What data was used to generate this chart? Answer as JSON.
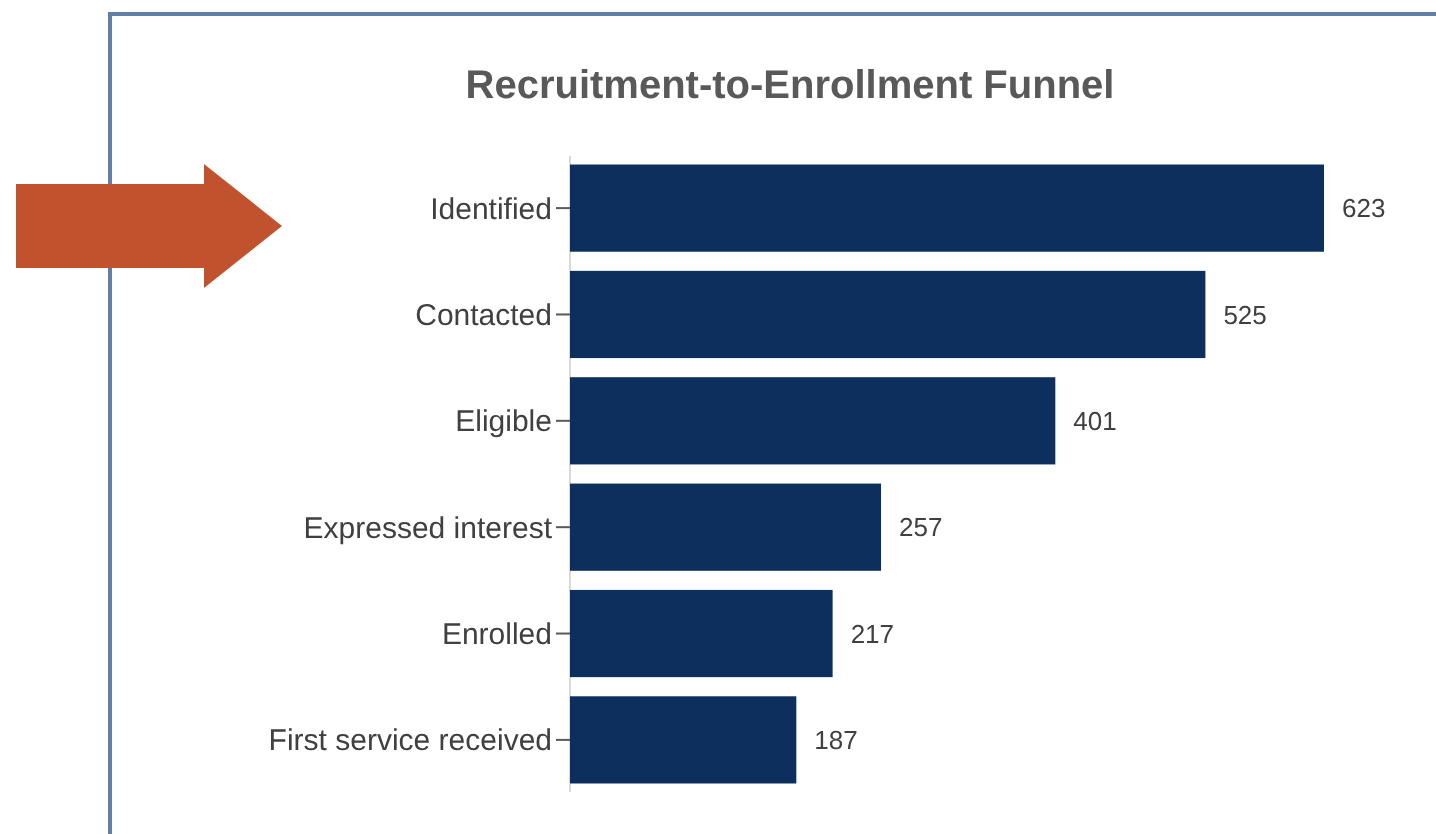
{
  "chart_data": {
    "type": "bar",
    "orientation": "horizontal",
    "title": "Recruitment-to-Enrollment Funnel",
    "categories": [
      "Identified",
      "Contacted",
      "Eligible",
      "Expressed interest",
      "Enrolled",
      "First service received"
    ],
    "values": [
      623,
      525,
      401,
      257,
      217,
      187
    ],
    "color": "#0d2f5e",
    "data_labels": true
  }
}
